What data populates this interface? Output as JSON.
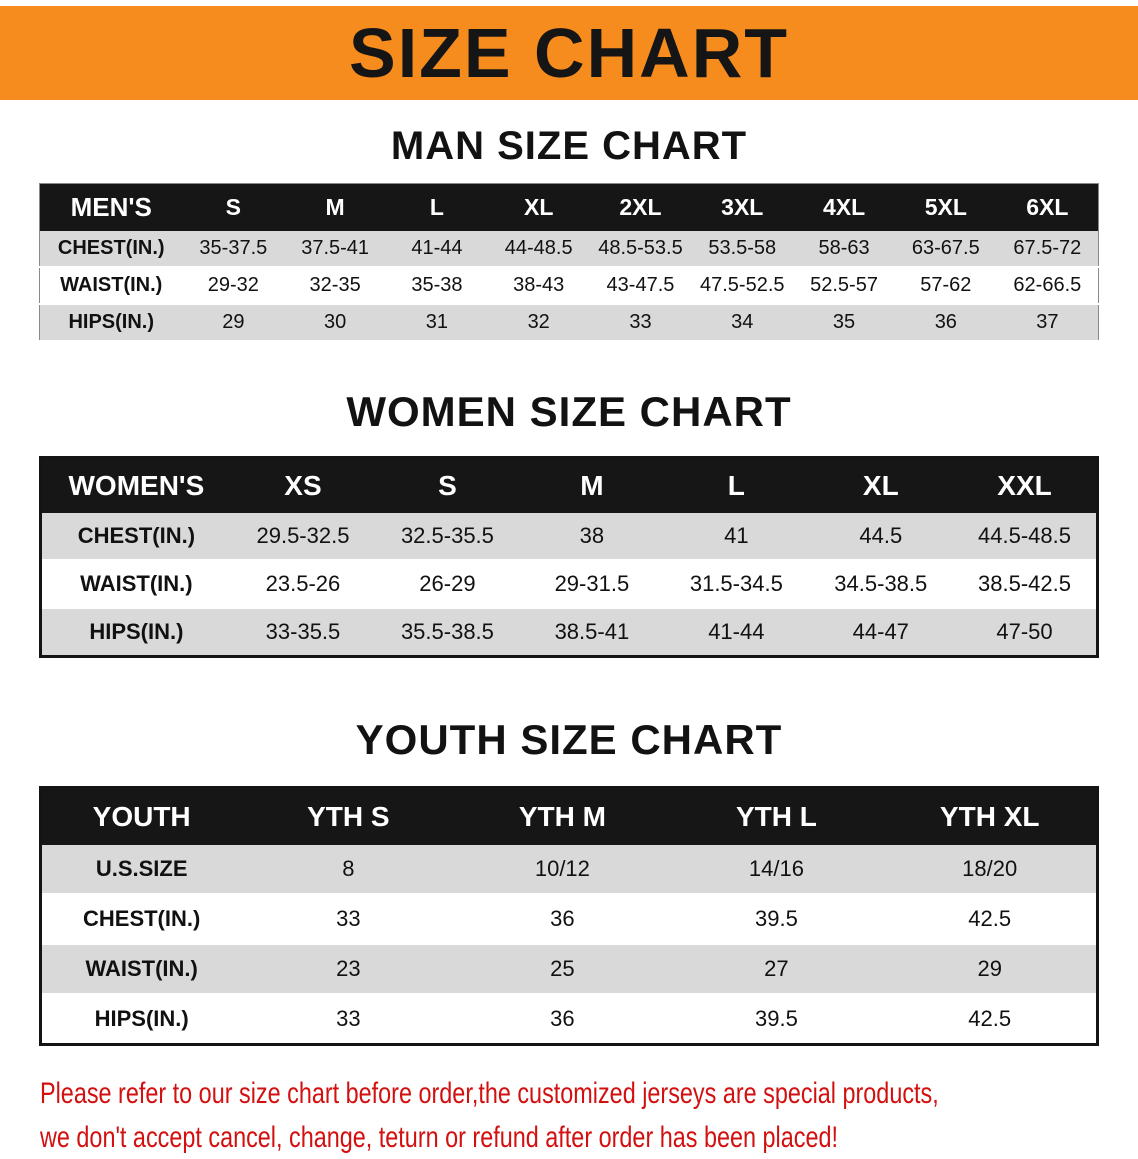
{
  "banner": {
    "title": "SIZE CHART",
    "bg": "#f68b1e"
  },
  "sections": {
    "men": {
      "heading": "MAN SIZE CHART",
      "header": [
        "MEN'S",
        "S",
        "M",
        "L",
        "XL",
        "2XL",
        "3XL",
        "4XL",
        "5XL",
        "6XL"
      ],
      "rows": [
        {
          "label": "CHEST(IN.)",
          "values": [
            "35-37.5",
            "37.5-41",
            "41-44",
            "44-48.5",
            "48.5-53.5",
            "53.5-58",
            "58-63",
            "63-67.5",
            "67.5-72"
          ]
        },
        {
          "label": "WAIST(IN.)",
          "values": [
            "29-32",
            "32-35",
            "35-38",
            "38-43",
            "43-47.5",
            "47.5-52.5",
            "52.5-57",
            "57-62",
            "62-66.5"
          ]
        },
        {
          "label": "HIPS(IN.)",
          "values": [
            "29",
            "30",
            "31",
            "32",
            "33",
            "34",
            "35",
            "36",
            "37"
          ]
        }
      ]
    },
    "women": {
      "heading": "WOMEN SIZE CHART",
      "header": [
        "WOMEN'S",
        "XS",
        "S",
        "M",
        "L",
        "XL",
        "XXL"
      ],
      "rows": [
        {
          "label": "CHEST(IN.)",
          "values": [
            "29.5-32.5",
            "32.5-35.5",
            "38",
            "41",
            "44.5",
            "44.5-48.5"
          ]
        },
        {
          "label": "WAIST(IN.)",
          "values": [
            "23.5-26",
            "26-29",
            "29-31.5",
            "31.5-34.5",
            "34.5-38.5",
            "38.5-42.5"
          ]
        },
        {
          "label": "HIPS(IN.)",
          "values": [
            "33-35.5",
            "35.5-38.5",
            "38.5-41",
            "41-44",
            "44-47",
            "47-50"
          ]
        }
      ]
    },
    "youth": {
      "heading": "YOUTH SIZE CHART",
      "header": [
        "YOUTH",
        "YTH S",
        "YTH M",
        "YTH L",
        "YTH XL"
      ],
      "rows": [
        {
          "label": "U.S.SIZE",
          "values": [
            "8",
            "10/12",
            "14/16",
            "18/20"
          ]
        },
        {
          "label": "CHEST(IN.)",
          "values": [
            "33",
            "36",
            "39.5",
            "42.5"
          ]
        },
        {
          "label": "WAIST(IN.)",
          "values": [
            "23",
            "25",
            "27",
            "29"
          ]
        },
        {
          "label": "HIPS(IN.)",
          "values": [
            "33",
            "36",
            "39.5",
            "42.5"
          ]
        }
      ]
    }
  },
  "disclaimer": {
    "line1": "Please refer to our size chart before order,the customized jerseys are special products,",
    "line2": "we don't accept cancel, change, teturn or refund after order has been placed!"
  }
}
